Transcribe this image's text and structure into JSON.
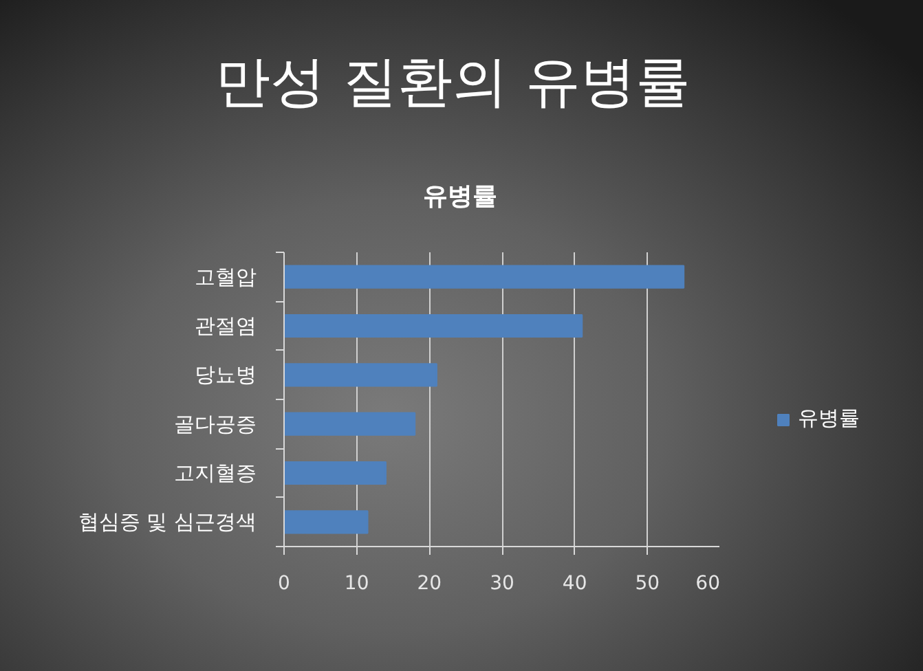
{
  "chart_data": {
    "type": "bar",
    "orientation": "horizontal",
    "title": "만성 질환의 유병률",
    "subtitle": "유병률",
    "categories": [
      "고혈압",
      "관절염",
      "당뇨병",
      "골다공증",
      "고지혈증",
      "협심증 및 심근경색"
    ],
    "series": [
      {
        "name": "유병률",
        "color": "#4f81bd",
        "values": [
          55,
          41,
          21,
          18,
          14,
          11.5
        ]
      }
    ],
    "xlim": [
      0,
      60
    ],
    "xticks": [
      0,
      10,
      20,
      30,
      40,
      50,
      60
    ],
    "grid": "x",
    "legend": "right"
  }
}
